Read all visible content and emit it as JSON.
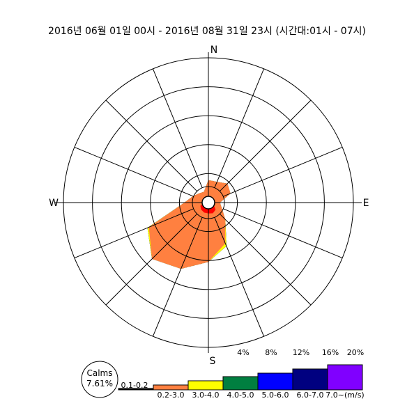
{
  "chart_data": {
    "type": "wind-rose",
    "title": "2016년 06월 01일 00시 - 2016년 08월 31일 23시 (시간대:01시 - 07시)",
    "directions": [
      "N",
      "NNE",
      "NE",
      "ENE",
      "E",
      "ESE",
      "SE",
      "SSE",
      "S",
      "SSW",
      "SW",
      "WSW",
      "W",
      "WNW",
      "NW",
      "NNW"
    ],
    "compass_labels": [
      "N",
      "E",
      "S",
      "W"
    ],
    "ring_values": [
      4,
      8,
      12,
      16,
      20
    ],
    "ring_labels": [
      "4%",
      "8%",
      "12%",
      "16%",
      "20%"
    ],
    "rmax": 20,
    "series": [
      {
        "name": "0.1-0.2",
        "color": "#000000",
        "values": [
          0.6,
          0.6,
          0.6,
          0.6,
          0.5,
          0.5,
          0.6,
          0.6,
          0.6,
          0.6,
          0.6,
          0.6,
          0.5,
          0.5,
          0.6,
          0.6
        ]
      },
      {
        "name": "0.2-3.0",
        "color": "#FF8040",
        "values": [
          3.1,
          3.1,
          3.7,
          3.3,
          1.6,
          2.0,
          3.3,
          6.1,
          8.2,
          9.9,
          11.0,
          8.9,
          3.3,
          2.3,
          1.8,
          1.6
        ]
      },
      {
        "name": "3.0-4.0",
        "color": "#FFFF00",
        "values": [
          3.1,
          3.1,
          3.7,
          3.3,
          1.6,
          2.0,
          3.3,
          6.5,
          8.2,
          9.9,
          11.0,
          9.1,
          3.3,
          2.3,
          1.8,
          1.6
        ]
      },
      {
        "name": "4.0-5.0",
        "color": "#007F40",
        "values": [
          3.1,
          3.1,
          3.7,
          3.3,
          1.6,
          2.0,
          3.3,
          6.5,
          8.2,
          9.9,
          11.0,
          9.1,
          3.3,
          2.3,
          1.8,
          1.6
        ]
      },
      {
        "name": "5.0-6.0",
        "color": "#0000FF",
        "values": [
          3.1,
          3.1,
          3.7,
          3.3,
          1.6,
          2.0,
          3.3,
          6.5,
          8.2,
          9.9,
          11.0,
          9.1,
          3.3,
          2.3,
          1.8,
          1.6
        ]
      },
      {
        "name": "6.0-7.0",
        "color": "#000080",
        "values": [
          3.1,
          3.1,
          3.7,
          3.3,
          1.6,
          2.0,
          3.3,
          6.5,
          8.2,
          9.9,
          11.0,
          9.1,
          3.3,
          2.3,
          1.8,
          1.6
        ]
      },
      {
        "name": "7.0~(m/s)",
        "color": "#8000FF",
        "values": [
          3.1,
          3.1,
          3.7,
          3.3,
          1.6,
          2.0,
          3.3,
          6.5,
          8.2,
          9.9,
          11.0,
          9.1,
          3.3,
          2.3,
          1.8,
          1.6
        ]
      }
    ],
    "red_core": {
      "color": "#FF0000",
      "values": [
        0.5,
        0.8,
        0.6,
        0.5,
        0.6,
        0.8,
        1.4,
        1.6,
        1.5,
        1.5,
        1.4,
        1.2,
        0.6,
        0.6,
        0.8,
        0.5
      ]
    },
    "calms": {
      "label": "Calms",
      "value": "7.61%"
    },
    "legend": [
      {
        "label": "0.1-0.2",
        "color": "#000000"
      },
      {
        "label": "0.2-3.0",
        "color": "#FF8040"
      },
      {
        "label": "3.0-4.0",
        "color": "#FFFF00"
      },
      {
        "label": "4.0-5.0",
        "color": "#007F40"
      },
      {
        "label": "5.0-6.0",
        "color": "#0000FF"
      },
      {
        "label": "6.0-7.0",
        "color": "#000080"
      },
      {
        "label": "7.0~(m/s)",
        "color": "#8000FF"
      }
    ]
  }
}
